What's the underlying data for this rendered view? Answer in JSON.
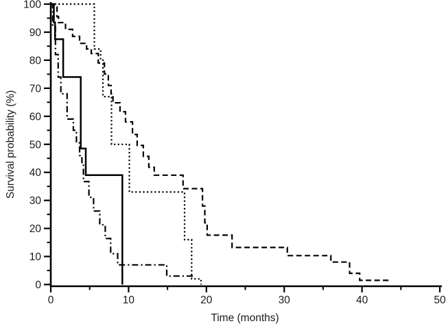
{
  "figure": {
    "background": "#ffffff",
    "line_color": "#000000",
    "text_color": "#1a1a1a"
  },
  "chart_data": {
    "type": "line",
    "subtype": "kaplan-meier-step",
    "title": "",
    "xlabel": "Time (months)",
    "ylabel": "Survival probability (%)",
    "xlim": [
      0,
      50
    ],
    "ylim": [
      0,
      100
    ],
    "x_major_ticks": [
      0,
      10,
      20,
      30,
      40,
      50
    ],
    "x_minor_ticks": [
      5,
      15,
      25,
      35,
      45
    ],
    "y_major_ticks": [
      0,
      10,
      20,
      30,
      40,
      50,
      60,
      70,
      80,
      90,
      100
    ],
    "y_minor_ticks": [
      5,
      15,
      25,
      35,
      45,
      55,
      65,
      75,
      85,
      95
    ],
    "grid": false,
    "legend": "none",
    "series": [
      {
        "name": "dashed",
        "line_style": "dashed",
        "color": "#000000",
        "steps": [
          [
            0,
            100
          ],
          [
            0.8,
            95.5
          ],
          [
            1.0,
            93.4
          ],
          [
            1.9,
            91
          ],
          [
            2.8,
            88.5
          ],
          [
            3.7,
            86
          ],
          [
            4.6,
            84
          ],
          [
            5.2,
            82.4
          ],
          [
            6.1,
            79
          ],
          [
            6.9,
            75.1
          ],
          [
            7.4,
            71
          ],
          [
            7.75,
            68
          ],
          [
            8.0,
            64.8
          ],
          [
            8.9,
            61.6
          ],
          [
            9.6,
            58
          ],
          [
            10.5,
            53.5
          ],
          [
            11.1,
            49.6
          ],
          [
            11.9,
            45.7
          ],
          [
            12.6,
            41.8
          ],
          [
            13.3,
            39
          ],
          [
            17.0,
            34.2
          ],
          [
            19.5,
            28
          ],
          [
            19.8,
            22
          ],
          [
            20.1,
            17.6
          ],
          [
            23.3,
            13.2
          ],
          [
            30.4,
            10.3
          ],
          [
            36.0,
            8
          ],
          [
            38.4,
            4
          ],
          [
            39.7,
            1.5
          ]
        ],
        "end_time": 43.6
      },
      {
        "name": "dotted",
        "line_style": "dotted",
        "color": "#000000",
        "steps": [
          [
            0,
            100
          ],
          [
            5.6,
            84
          ],
          [
            6.4,
            80
          ],
          [
            6.7,
            67
          ],
          [
            7.8,
            50
          ],
          [
            10.1,
            33
          ],
          [
            17.2,
            16
          ],
          [
            18.1,
            2
          ],
          [
            19.3,
            0
          ]
        ],
        "end_time": 19.3
      },
      {
        "name": "dash-dot",
        "line_style": "dashdot",
        "color": "#000000",
        "steps": [
          [
            0,
            100
          ],
          [
            0.25,
            92
          ],
          [
            0.6,
            82
          ],
          [
            0.95,
            74
          ],
          [
            1.3,
            68
          ],
          [
            2.1,
            59
          ],
          [
            2.9,
            55
          ],
          [
            3.3,
            50.5
          ],
          [
            3.7,
            46
          ],
          [
            4.0,
            42.8
          ],
          [
            4.2,
            36.7
          ],
          [
            4.9,
            31.1
          ],
          [
            5.5,
            26.2
          ],
          [
            6.3,
            21.3
          ],
          [
            7.0,
            16.4
          ],
          [
            7.7,
            11
          ],
          [
            8.6,
            7
          ],
          [
            14.9,
            3
          ]
        ],
        "end_time": 18.5
      },
      {
        "name": "solid",
        "line_style": "solid",
        "color": "#000000",
        "steps": [
          [
            0,
            100
          ],
          [
            0.4,
            93.5
          ],
          [
            0.55,
            87.5
          ],
          [
            1.6,
            74
          ],
          [
            3.85,
            48.5
          ],
          [
            4.5,
            39
          ],
          [
            9.2,
            0
          ]
        ],
        "end_time": 9.2
      }
    ]
  }
}
